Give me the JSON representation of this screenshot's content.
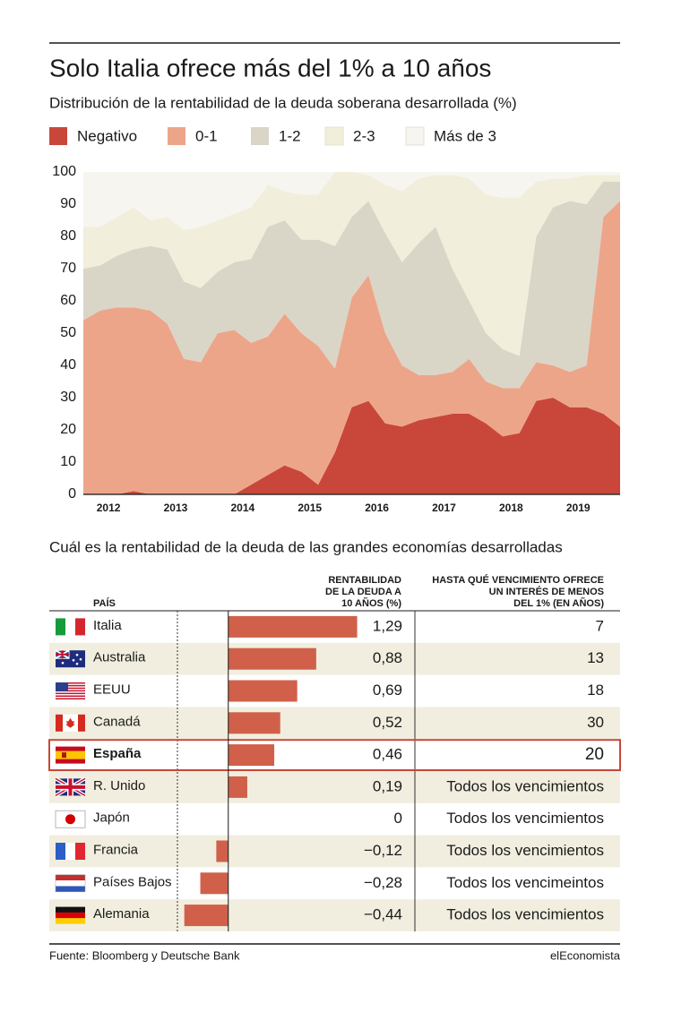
{
  "chart_data": [
    {
      "type": "area",
      "title": "Solo Italia ofrece más del 1% a 10 años",
      "subtitle": "Distribución de la rentabilidad de la deuda soberana desarrollada (%)",
      "x": [
        2012.125,
        2012.375,
        2012.625,
        2012.875,
        2013.125,
        2013.375,
        2013.625,
        2013.875,
        2014.125,
        2014.375,
        2014.625,
        2014.875,
        2015.125,
        2015.375,
        2015.625,
        2015.875,
        2016.125,
        2016.375,
        2016.625,
        2016.875,
        2017.125,
        2017.375,
        2017.625,
        2017.875,
        2018.125,
        2018.375,
        2018.625,
        2018.875,
        2019.125,
        2019.375,
        2019.625,
        2019.875,
        2020.125
      ],
      "xlim": [
        2012.125,
        2020.125
      ],
      "xticks": [
        {
          "value": 2012.5,
          "label": "2012"
        },
        {
          "value": 2013.5,
          "label": "2013"
        },
        {
          "value": 2014.5,
          "label": "2014"
        },
        {
          "value": 2015.5,
          "label": "2015"
        },
        {
          "value": 2016.5,
          "label": "2016"
        },
        {
          "value": 2017.5,
          "label": "2017"
        },
        {
          "value": 2018.5,
          "label": "2018"
        },
        {
          "value": 2019.5,
          "label": "2019"
        }
      ],
      "ylim": [
        0,
        100
      ],
      "yticks": [
        0,
        10,
        20,
        30,
        40,
        50,
        60,
        70,
        80,
        90,
        100
      ],
      "stacked": true,
      "series": [
        {
          "name": "Negativo",
          "color": "#c8473a",
          "values": [
            0,
            0,
            0,
            1,
            0,
            0,
            0,
            0,
            0,
            0,
            3,
            6,
            9,
            7,
            3,
            13,
            27,
            29,
            22,
            21,
            23,
            24,
            25,
            25,
            22,
            18,
            19,
            29,
            30,
            27,
            27,
            25,
            21
          ]
        },
        {
          "name": "0-1",
          "color": "#eda58a",
          "values": [
            54,
            57,
            58,
            57,
            57,
            53,
            42,
            41,
            50,
            51,
            44,
            43,
            47,
            43,
            43,
            26,
            34,
            39,
            28,
            19,
            14,
            13,
            13,
            17,
            13,
            15,
            14,
            12,
            10,
            11,
            13,
            61,
            70
          ]
        },
        {
          "name": "1-2",
          "color": "#d9d6c8",
          "values": [
            16,
            14,
            16,
            18,
            20,
            23,
            24,
            23,
            19,
            21,
            26,
            34,
            29,
            29,
            33,
            38,
            25,
            23,
            31,
            32,
            41,
            46,
            32,
            18,
            15,
            12,
            10,
            39,
            49,
            53,
            50,
            11,
            6
          ]
        },
        {
          "name": "2-3",
          "color": "#f1eedb",
          "values": [
            13,
            12,
            12,
            13,
            8,
            10,
            16,
            19,
            16,
            15,
            16,
            13,
            9,
            14,
            14,
            23,
            14,
            8,
            15,
            22,
            20,
            16,
            29,
            38,
            43,
            47,
            49,
            17,
            9,
            7,
            9,
            2,
            2
          ]
        },
        {
          "name": "Más de 3",
          "color": "#f6f5ef",
          "values": [
            17,
            17,
            14,
            11,
            15,
            14,
            18,
            17,
            15,
            13,
            11,
            4,
            6,
            7,
            7,
            0,
            0,
            1,
            4,
            6,
            2,
            1,
            1,
            2,
            7,
            8,
            8,
            3,
            2,
            2,
            1,
            1,
            1
          ]
        }
      ]
    },
    {
      "type": "bar",
      "orientation": "horizontal",
      "title": "Cuál es la rentabilidad de la deuda de las grandes economías desarrolladas",
      "category_header": "PAÍS",
      "value_header": [
        "RENTABILIDAD",
        "DE LA DEUDA A",
        "10 AÑOS (%)"
      ],
      "maturity_header": [
        "HASTA QUÉ VENCIMIENTO OFRECE",
        "UN INTERÉS DE MENOS",
        "DEL 1% (EN AÑOS)"
      ],
      "categories": [
        "Italia",
        "Australia",
        "EEUU",
        "Canadá",
        "España",
        "R. Unido",
        "Japón",
        "Francia",
        "Países Bajos",
        "Alemania"
      ],
      "values": [
        1.29,
        0.88,
        0.69,
        0.52,
        0.46,
        0.19,
        0,
        -0.12,
        -0.28,
        -0.44
      ],
      "value_labels": [
        "1,29",
        "0,88",
        "0,69",
        "0,52",
        "0,46",
        "0,19",
        "0",
        "−0,12",
        "−0,28",
        "−0,44"
      ],
      "maturity": [
        7,
        13,
        18,
        30,
        20,
        "Todos los vencimientos",
        "Todos los vencimientos",
        "Todos los vencimientos",
        "Todos los vencimeintos",
        "Todos los vencimientos"
      ],
      "xlim": [
        -0.5,
        1.5
      ],
      "color": "#d0604a",
      "highlight": "España"
    }
  ],
  "source": "Fuente: Bloomberg y Deutsche Bank",
  "brand": "elEconomista"
}
